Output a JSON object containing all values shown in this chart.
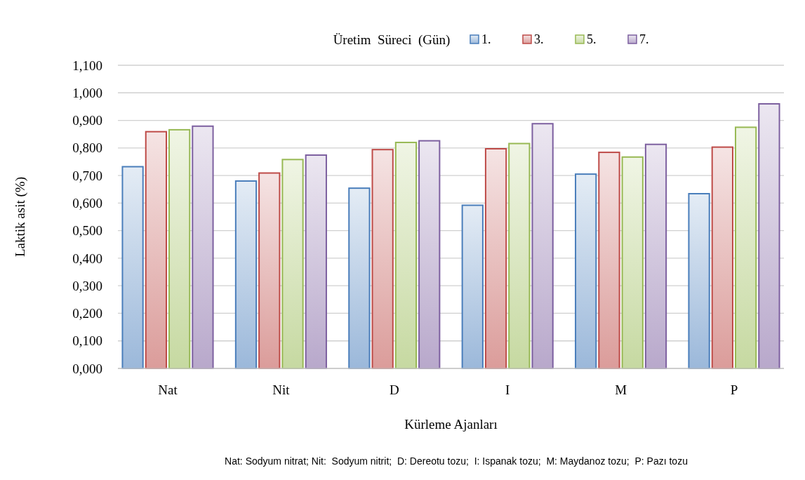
{
  "chart_data": {
    "type": "bar",
    "xlabel": "Kürleme Ajanları",
    "ylabel": "Laktik asit (%)",
    "legend_title": "Üretim  Süreci  (Gün)",
    "legend": "top right",
    "grid": "y",
    "categories": [
      "Nat",
      "Nit",
      "D",
      "I",
      "M",
      "P"
    ],
    "series": [
      {
        "name": "1.",
        "color": "#4a7ebb",
        "values": [
          0.732,
          0.68,
          0.654,
          0.592,
          0.705,
          0.634
        ]
      },
      {
        "name": "3.",
        "color": "#be4b48",
        "values": [
          0.859,
          0.709,
          0.794,
          0.797,
          0.784,
          0.803
        ]
      },
      {
        "name": "5.",
        "color": "#98b954",
        "values": [
          0.866,
          0.758,
          0.82,
          0.816,
          0.767,
          0.875
        ]
      },
      {
        "name": "7.",
        "color": "#7d60a0",
        "values": [
          0.879,
          0.774,
          0.826,
          0.888,
          0.813,
          0.96
        ]
      }
    ],
    "ylim": [
      0,
      1.1
    ],
    "yticks": [
      {
        "value": 0,
        "label": "0,000"
      },
      {
        "value": 0.1,
        "label": "0,100"
      },
      {
        "value": 0.2,
        "label": "0,200"
      },
      {
        "value": 0.3,
        "label": "0,300"
      },
      {
        "value": 0.4,
        "label": "0,400"
      },
      {
        "value": 0.5,
        "label": "0,500"
      },
      {
        "value": 0.6,
        "label": "0,600"
      },
      {
        "value": 0.7,
        "label": "0,700"
      },
      {
        "value": 0.8,
        "label": "0,800"
      },
      {
        "value": 0.9,
        "label": "0,900"
      },
      {
        "value": 1.0,
        "label": "1,000"
      },
      {
        "value": 1.1,
        "label": "1,100"
      }
    ],
    "annotations": [
      "Nat: Sodyum nitrat; Nit:  Sodyum nitrit;  D: Dereotu tozu;  I: Ispanak tozu;  M: Maydanoz tozu;  P: Pazı tozu"
    ]
  }
}
